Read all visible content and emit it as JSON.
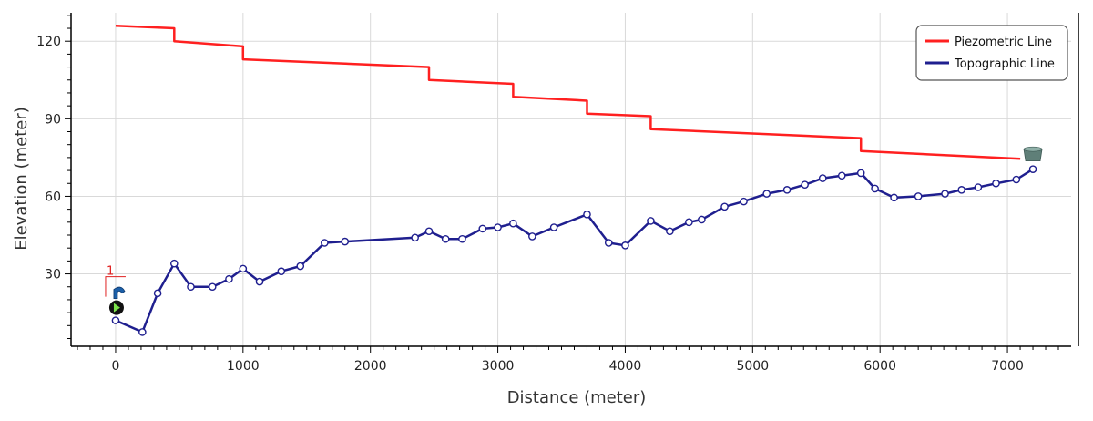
{
  "chart_data": {
    "type": "line",
    "xlabel": "Distance (meter)",
    "ylabel": "Elevation (meter)",
    "xlim": [
      -350,
      7500
    ],
    "ylim": [
      2,
      131
    ],
    "x_ticks": [
      0,
      1000,
      2000,
      3000,
      4000,
      5000,
      6000,
      7000
    ],
    "y_ticks": [
      30,
      60,
      90,
      120
    ],
    "grid": true,
    "legend_position": "top-right",
    "colors": {
      "piezometric": "#ff2020",
      "topographic": "#1f1f8f"
    },
    "marker_label": "1",
    "series": [
      {
        "name": "Piezometric Line",
        "step": true,
        "x": [
          0,
          460,
          460,
          1000,
          1000,
          2460,
          2460,
          3120,
          3120,
          3700,
          3700,
          4200,
          4200,
          5850,
          5850,
          7100
        ],
        "y": [
          126,
          125,
          120,
          118,
          113,
          110,
          105,
          103.5,
          98.5,
          97,
          92,
          91,
          86,
          82.5,
          77.5,
          74.5
        ]
      },
      {
        "name": "Topographic Line",
        "markers": true,
        "x": [
          0,
          210,
          330,
          460,
          590,
          760,
          890,
          1000,
          1130,
          1300,
          1450,
          1640,
          1800,
          2350,
          2460,
          2590,
          2720,
          2880,
          3000,
          3120,
          3270,
          3440,
          3700,
          3870,
          4000,
          4200,
          4350,
          4500,
          4600,
          4780,
          4930,
          5110,
          5270,
          5410,
          5550,
          5700,
          5850,
          5960,
          6110,
          6300,
          6510,
          6640,
          6770,
          6910,
          7070,
          7200
        ],
        "y": [
          12,
          7.5,
          22.5,
          34,
          25,
          25,
          28,
          32,
          27,
          31,
          33,
          42,
          42.5,
          44,
          46.5,
          43.5,
          43.5,
          47.5,
          48,
          49.5,
          44.5,
          48,
          53,
          42,
          41,
          50.5,
          46.5,
          50,
          51,
          56,
          58,
          61,
          62.5,
          64.5,
          67,
          68,
          69,
          63,
          59.5,
          60,
          61,
          62.5,
          63.5,
          65,
          66.5,
          70.5
        ]
      }
    ]
  },
  "icons": {
    "start_marker": "reservoir-start-icon",
    "end_marker": "reservoir-end-icon"
  }
}
